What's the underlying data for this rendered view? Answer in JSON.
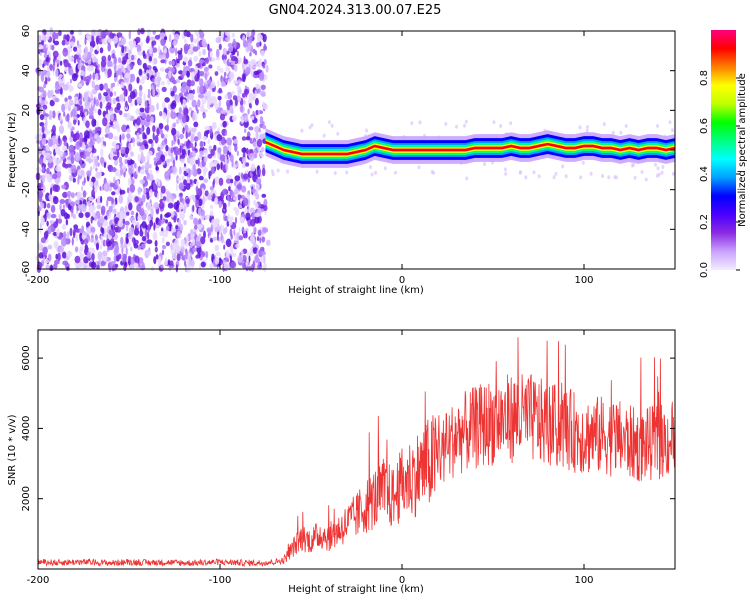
{
  "figure": {
    "title": "GN04.2024.313.00.07.E25"
  },
  "chart_data": [
    {
      "type": "heatmap",
      "title": "GN04.2024.313.00.07.E25",
      "xlabel": "Height of straight line (km)",
      "ylabel": "Frequency (Hz)",
      "xlim": [
        -200,
        150
      ],
      "ylim": [
        -60,
        60
      ],
      "x_ticks": [
        -200,
        -100,
        0,
        100
      ],
      "y_ticks": [
        -60,
        -40,
        -20,
        0,
        20,
        40,
        60
      ],
      "grid": false,
      "colorbar": {
        "label": "Normalized spectral amplitude",
        "range": [
          0.0,
          1.0
        ],
        "ticks": [
          0.0,
          0.2,
          0.4,
          0.6,
          0.8
        ],
        "colormap": [
          "#f4ecff",
          "#c9a3ff",
          "#8b2be2",
          "#4b00ff",
          "#0000ff",
          "#00a0ff",
          "#00ffff",
          "#00ff80",
          "#00ff00",
          "#c0ff00",
          "#ffff00",
          "#ff8000",
          "#ff0000",
          "#ff0080"
        ]
      },
      "series": [
        {
          "name": "",
          "x": [
            -75,
            -70,
            -65,
            -60,
            -55,
            -50,
            -45,
            -40,
            -35,
            -30,
            -25,
            -20,
            -15,
            -10,
            -5,
            0,
            5,
            10,
            15,
            20,
            25,
            30,
            35,
            40,
            45,
            50,
            55,
            60,
            65,
            70,
            75,
            80,
            85,
            90,
            95,
            100,
            105,
            110,
            115,
            120,
            125,
            130,
            135,
            140,
            145,
            150
          ],
          "y": [
            4,
            2,
            0,
            -1,
            -2,
            -2,
            -2,
            -2,
            -2,
            -2,
            -1,
            0,
            2,
            1,
            0,
            0,
            0,
            0,
            0,
            0,
            0,
            0,
            0,
            1,
            1,
            1,
            1,
            2,
            1,
            1,
            2,
            3,
            2,
            1,
            1,
            2,
            2,
            1,
            1,
            0,
            1,
            0,
            1,
            1,
            0,
            1
          ]
        }
      ]
    },
    {
      "type": "line",
      "xlabel": "Height of straight line (km)",
      "ylabel": "SNR (10 * v/v)",
      "xlim": [
        -200,
        150
      ],
      "ylim": [
        0,
        6800
      ],
      "x_ticks": [
        -200,
        -100,
        0,
        100
      ],
      "y_ticks": [
        2000,
        4000,
        6000
      ],
      "grid": false,
      "color": "#ee3333",
      "series": [
        {
          "name": "",
          "x": [
            -200,
            -190,
            -180,
            -170,
            -160,
            -150,
            -140,
            -130,
            -120,
            -110,
            -100,
            -90,
            -80,
            -70,
            -65,
            -60,
            -55,
            -50,
            -45,
            -40,
            -35,
            -30,
            -25,
            -20,
            -15,
            -10,
            -5,
            0,
            5,
            10,
            15,
            20,
            25,
            30,
            40,
            50,
            60,
            70,
            80,
            90,
            100,
            110,
            120,
            130,
            140,
            150
          ],
          "y": [
            200,
            180,
            200,
            190,
            170,
            200,
            180,
            190,
            170,
            180,
            200,
            180,
            170,
            200,
            250,
            600,
            900,
            800,
            1000,
            900,
            1100,
            1300,
            1500,
            1800,
            2000,
            2200,
            2000,
            2400,
            2600,
            2800,
            3000,
            3200,
            3500,
            3800,
            4000,
            4200,
            4300,
            4300,
            4100,
            4000,
            3800,
            3800,
            3700,
            3500,
            3600,
            3700
          ]
        }
      ]
    }
  ]
}
